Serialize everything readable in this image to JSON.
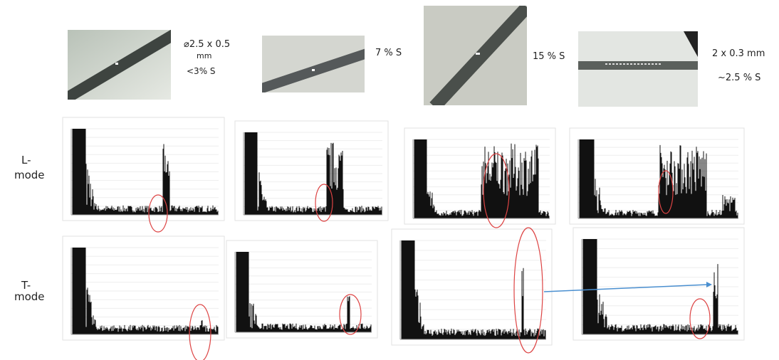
{
  "captions": [
    [
      "⌀2.5 x 0.5",
      "mm",
      "<3% S"
    ],
    [
      "7 % S"
    ],
    [
      "15 % S"
    ],
    [
      "2 x 0.3 mm",
      "~2.5 % S"
    ]
  ],
  "row_labels": [
    [
      "L-",
      "mode"
    ],
    [
      "T-",
      "mode"
    ]
  ]
}
